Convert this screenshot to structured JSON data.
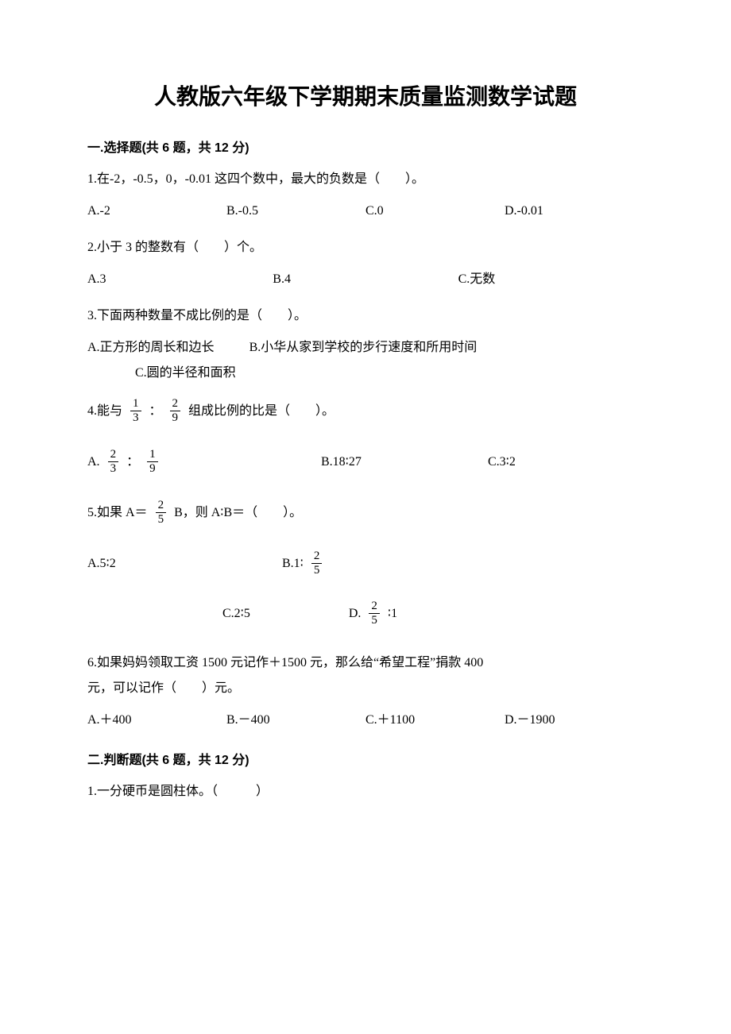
{
  "document": {
    "title": "人教版六年级下学期期末质量监测数学试题",
    "text_color": "#000000",
    "background_color": "#ffffff",
    "title_fontsize": 28,
    "body_fontsize": 16,
    "section1": {
      "header": "一.选择题(共 6 题，共 12 分)",
      "q1": {
        "text": "1.在-2，-0.5，0，-0.01 这四个数中，最大的负数是（　　）。",
        "options": {
          "a": "A.-2",
          "b": "B.-0.5",
          "c": "C.0",
          "d": "D.-0.01"
        }
      },
      "q2": {
        "text": "2.小于 3 的整数有（　　）个。",
        "options": {
          "a": "A.3",
          "b": "B.4",
          "c": "C.无数"
        }
      },
      "q3": {
        "text": "3.下面两种数量不成比例的是（　　）。",
        "options": {
          "a": "A.正方形的周长和边长",
          "b": "B.小华从家到学校的步行速度和所用时间",
          "c": "C.圆的半径和面积"
        }
      },
      "q4": {
        "prefix": "4.能与",
        "frac1": {
          "num": "1",
          "den": "3"
        },
        "colon": "：",
        "frac2": {
          "num": "2",
          "den": "9"
        },
        "suffix": "组成比例的比是（　　）。",
        "options": {
          "a_prefix": "A.",
          "a_frac1": {
            "num": "2",
            "den": "3"
          },
          "a_colon": "：",
          "a_frac2": {
            "num": "1",
            "den": "9"
          },
          "b": "B.18∶27",
          "c": "C.3∶2"
        }
      },
      "q5": {
        "prefix": "5.如果 A＝",
        "frac1": {
          "num": "2",
          "den": "5"
        },
        "suffix": "B，则 A∶B＝（　　）。",
        "options": {
          "a": "A.5∶2",
          "b_prefix": "B.1∶",
          "b_frac": {
            "num": "2",
            "den": "5"
          },
          "c": "C.2∶5",
          "d_prefix": "D.",
          "d_frac": {
            "num": "2",
            "den": "5"
          },
          "d_suffix": "∶1"
        }
      },
      "q6": {
        "text_line1": "6.如果妈妈领取工资 1500 元记作＋1500 元，那么给“希望工程”捐款 400",
        "text_line2": "元，可以记作（　　）元。",
        "options": {
          "a": "A.＋400",
          "b": "B.－400",
          "c": "C.＋1100",
          "d": "D.－1900"
        }
      }
    },
    "section2": {
      "header": "二.判断题(共 6 题，共 12 分)",
      "q1": {
        "text": "1.一分硬币是圆柱体。（　　　）"
      }
    }
  }
}
